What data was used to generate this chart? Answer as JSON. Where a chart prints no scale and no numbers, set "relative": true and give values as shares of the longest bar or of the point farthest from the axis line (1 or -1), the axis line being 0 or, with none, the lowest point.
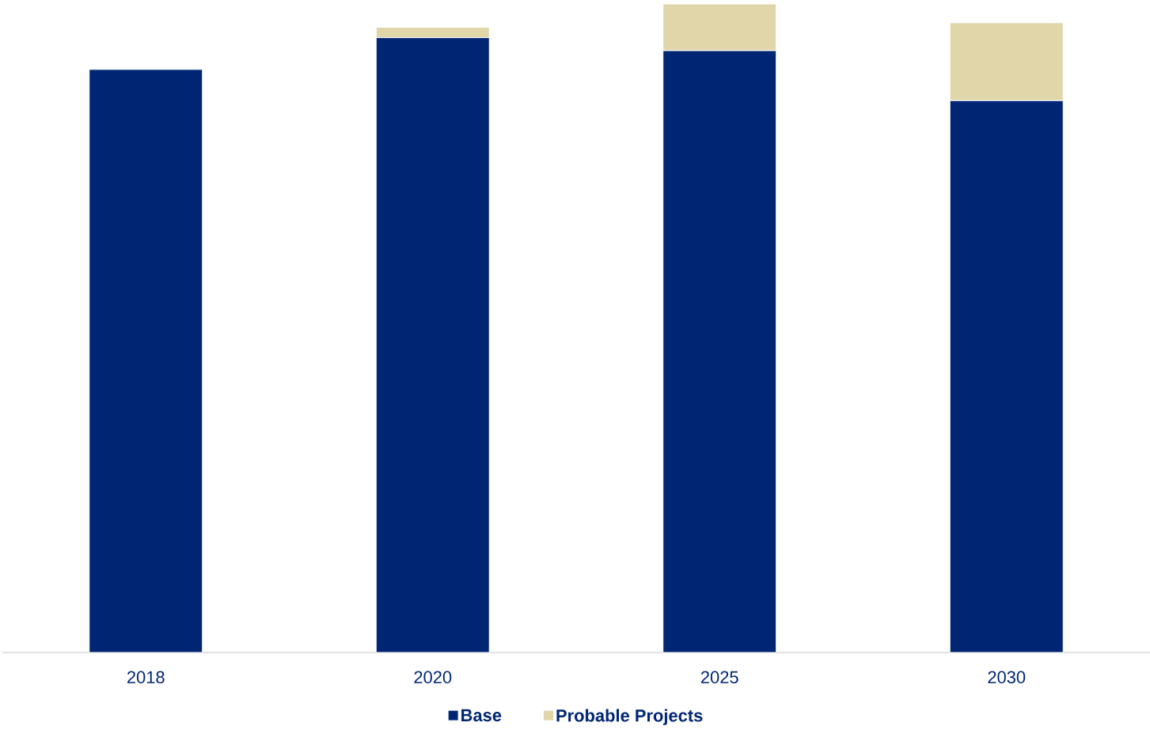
{
  "chart_data": {
    "type": "bar",
    "stacked": true,
    "relative": true,
    "categories": [
      "2018",
      "2020",
      "2025",
      "2030"
    ],
    "series": [
      {
        "name": "Base",
        "color": "#002673",
        "values": [
          0.899,
          0.948,
          0.928,
          0.851
        ]
      },
      {
        "name": "Probable Projects",
        "color": "#e0d6aa",
        "values": [
          0,
          0.016,
          0.072,
          0.12
        ]
      }
    ],
    "legend": "bottom"
  }
}
